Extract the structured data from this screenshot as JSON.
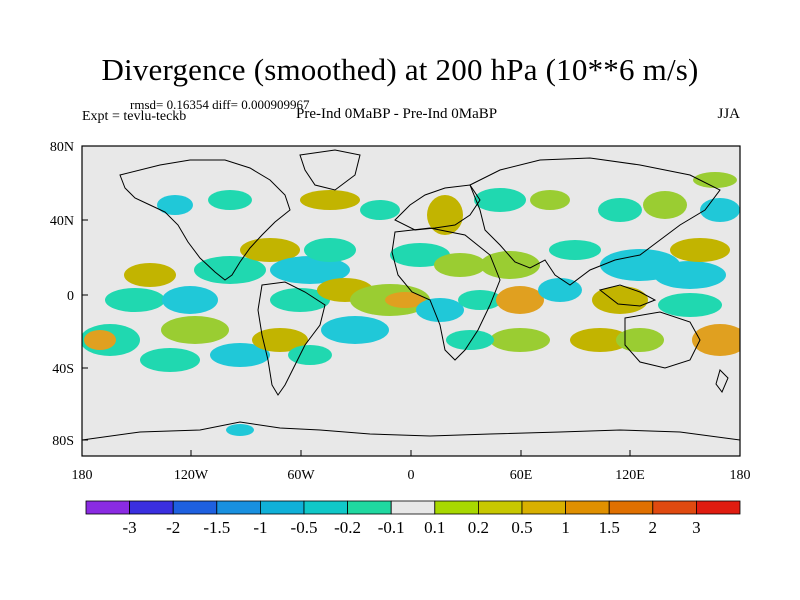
{
  "header": {
    "title": "Divergence (smoothed) at 200 hPa (10**6 m/s)",
    "stats": "rmsd= 0.16354 diff= 0.000909967",
    "experiment": "Expt = tevlu-teckb",
    "comparison": "Pre-Ind 0MaBP - Pre-Ind 0MaBP",
    "season": "JJA"
  },
  "map": {
    "lat_ticks": [
      "80N",
      "40N",
      "0",
      "40S",
      "80S"
    ],
    "lon_ticks": [
      "180",
      "120W",
      "60W",
      "0",
      "60E",
      "120E",
      "180"
    ],
    "background_color": "#e8e8e8",
    "positive_fill_colors": [
      "#9acd32",
      "#c2b400",
      "#e0a020"
    ],
    "negative_fill_colors": [
      "#20d8b0",
      "#20c8d8",
      "#20a8e0"
    ]
  },
  "colorbar": {
    "colors": [
      "#8a2be2",
      "#3a2fe0",
      "#1e60e0",
      "#1890e0",
      "#10b0d8",
      "#10c8c8",
      "#20d8a0",
      "#e8e8e8",
      "#a8d800",
      "#c8c800",
      "#d8b000",
      "#e09000",
      "#e07000",
      "#e04a10",
      "#e01c10"
    ],
    "labels": [
      "-3",
      "-2",
      "-1.5",
      "-1",
      "-0.5",
      "-0.2",
      "-0.1",
      "0.1",
      "0.2",
      "0.5",
      "1",
      "1.5",
      "2",
      "3"
    ]
  }
}
